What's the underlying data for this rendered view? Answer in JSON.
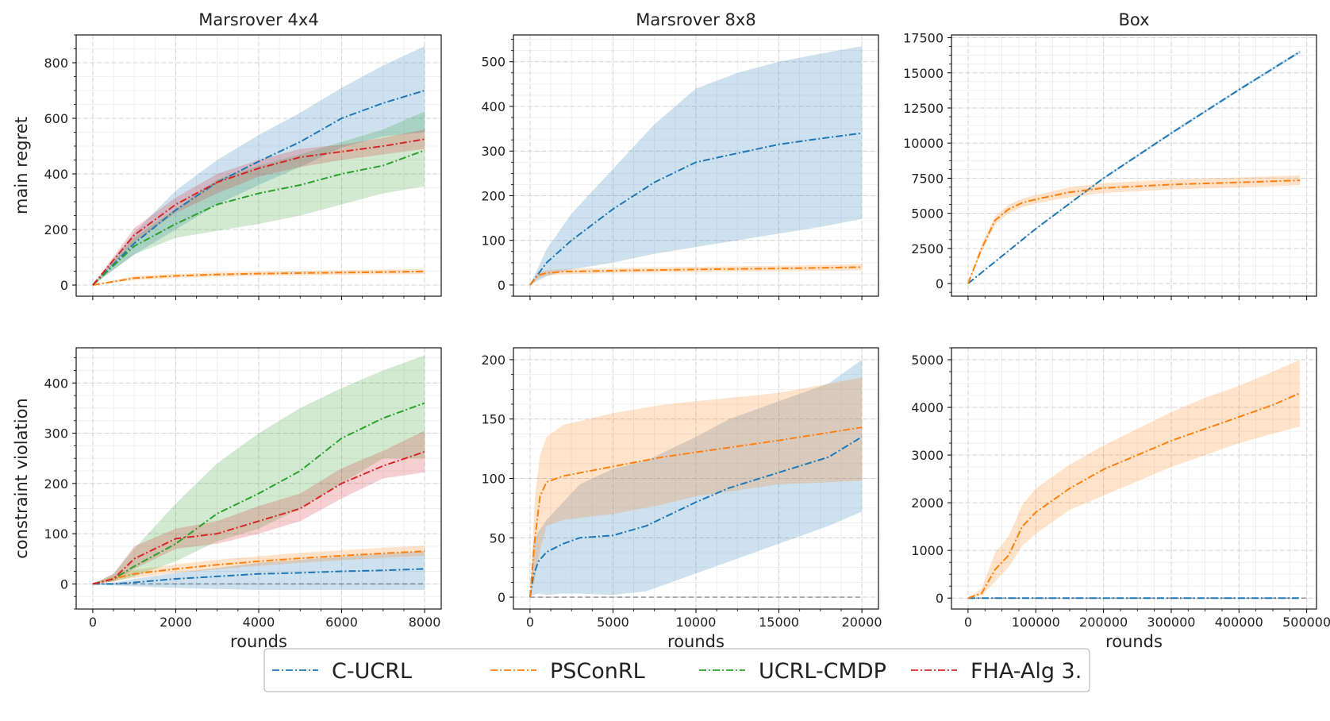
{
  "chart_data": {
    "type": "line",
    "layout": "2x3 grid of panels",
    "legend": {
      "placement": "bottom-center",
      "entries": [
        {
          "name": "C-UCRL",
          "color": "#1f77b4"
        },
        {
          "name": "PSConRL",
          "color": "#ff7f0e"
        },
        {
          "name": "UCRL-CMDP",
          "color": "#2ca02c"
        },
        {
          "name": "FHA-Alg 3.",
          "color": "#d62728"
        }
      ]
    },
    "columns": [
      {
        "title": "Marsrover 4x4",
        "xlabel": "rounds",
        "xlim": [
          -400,
          8400
        ],
        "xticks": [
          0,
          2000,
          4000,
          6000,
          8000
        ],
        "xtick_labels": [
          "0",
          "2000",
          "4000",
          "6000",
          "8000"
        ]
      },
      {
        "title": "Marsrover 8x8",
        "xlabel": "rounds",
        "xlim": [
          -1000,
          21000
        ],
        "xticks": [
          0,
          5000,
          10000,
          15000,
          20000
        ],
        "xtick_labels": [
          "0",
          "5000",
          "10000",
          "15000",
          "20000"
        ]
      },
      {
        "title": "Box",
        "xlabel": "rounds",
        "xlim": [
          -24500,
          514500
        ],
        "xticks": [
          0,
          100000,
          200000,
          300000,
          400000,
          500000
        ],
        "xtick_labels": [
          "0",
          "100000",
          "200000",
          "300000",
          "400000",
          "500000"
        ]
      }
    ],
    "rows": [
      {
        "ylabel": "main regret"
      },
      {
        "ylabel": "constraint violation"
      }
    ],
    "panels": [
      {
        "row": 0,
        "col": 0,
        "ylim": [
          -40,
          900
        ],
        "yticks": [
          0,
          200,
          400,
          600,
          800
        ],
        "ytick_labels": [
          "0",
          "200",
          "400",
          "600",
          "800"
        ],
        "series": [
          {
            "name": "C-UCRL",
            "x": [
              0,
              1000,
              2000,
              3000,
              4000,
              5000,
              6000,
              7000,
              8000
            ],
            "mean": [
              0,
              150,
              270,
              370,
              445,
              515,
              600,
              655,
              700
            ],
            "lower": [
              0,
              110,
              200,
              290,
              360,
              425,
              495,
              535,
              550
            ],
            "upper": [
              0,
              190,
              340,
              450,
              540,
              620,
              710,
              790,
              860
            ]
          },
          {
            "name": "PSConRL",
            "x": [
              0,
              1000,
              2000,
              3000,
              4000,
              5000,
              6000,
              7000,
              8000
            ],
            "mean": [
              0,
              25,
              33,
              38,
              41,
              43,
              45,
              47,
              49
            ],
            "lower": [
              0,
              18,
              26,
              30,
              33,
              35,
              37,
              39,
              40
            ],
            "upper": [
              0,
              32,
              40,
              46,
              49,
              51,
              53,
              56,
              58
            ]
          },
          {
            "name": "UCRL-CMDP",
            "x": [
              0,
              1000,
              2000,
              3000,
              4000,
              5000,
              6000,
              7000,
              8000
            ],
            "mean": [
              0,
              140,
              220,
              290,
              330,
              360,
              400,
              430,
              485
            ],
            "lower": [
              0,
              110,
              170,
              195,
              220,
              250,
              290,
              330,
              355
            ],
            "upper": [
              0,
              170,
              275,
              380,
              430,
              470,
              515,
              560,
              625
            ]
          },
          {
            "name": "FHA-Alg 3.",
            "x": [
              0,
              1000,
              2000,
              3000,
              4000,
              5000,
              6000,
              7000,
              8000
            ],
            "mean": [
              0,
              180,
              290,
              370,
              420,
              460,
              480,
              500,
              525
            ],
            "lower": [
              0,
              155,
              260,
              330,
              390,
              425,
              450,
              470,
              490
            ],
            "upper": [
              0,
              205,
              315,
              400,
              450,
              490,
              505,
              530,
              560
            ]
          }
        ]
      },
      {
        "row": 0,
        "col": 1,
        "ylim": [
          -25,
          560
        ],
        "yticks": [
          0,
          100,
          200,
          300,
          400,
          500
        ],
        "ytick_labels": [
          "0",
          "100",
          "200",
          "300",
          "400",
          "500"
        ],
        "series": [
          {
            "name": "C-UCRL",
            "x": [
              0,
              1000,
              2500,
              5000,
              7500,
              10000,
              12500,
              15000,
              17500,
              20000
            ],
            "mean": [
              0,
              50,
              100,
              170,
              230,
              275,
              295,
              315,
              328,
              340
            ],
            "lower": [
              0,
              20,
              35,
              50,
              70,
              85,
              100,
              115,
              130,
              148
            ],
            "upper": [
              0,
              80,
              160,
              260,
              360,
              440,
              475,
              500,
              518,
              535
            ]
          },
          {
            "name": "PSConRL",
            "x": [
              0,
              500,
              1000,
              2000,
              5000,
              10000,
              15000,
              20000
            ],
            "mean": [
              0,
              22,
              27,
              30,
              32,
              35,
              37,
              40
            ],
            "lower": [
              0,
              15,
              21,
              24,
              27,
              29,
              31,
              33
            ],
            "upper": [
              0,
              29,
              33,
              36,
              38,
              41,
              43,
              47
            ]
          }
        ]
      },
      {
        "row": 0,
        "col": 2,
        "ylim": [
          -900,
          17700
        ],
        "yticks": [
          0,
          2500,
          5000,
          7500,
          10000,
          12500,
          15000,
          17500
        ],
        "ytick_labels": [
          "0",
          "2500",
          "5000",
          "7500",
          "10000",
          "12500",
          "15000",
          "17500"
        ],
        "series": [
          {
            "name": "C-UCRL",
            "x": [
              0,
              100000,
              200000,
              300000,
              400000,
              490000
            ],
            "mean": [
              0,
              3900,
              7500,
              10700,
              13800,
              16500
            ],
            "lower": [
              0,
              3850,
              7420,
              10600,
              13700,
              16380
            ],
            "upper": [
              0,
              3950,
              7580,
              10800,
              13900,
              16620
            ]
          },
          {
            "name": "PSConRL",
            "x": [
              0,
              20000,
              40000,
              60000,
              80000,
              100000,
              150000,
              200000,
              300000,
              400000,
              490000
            ],
            "mean": [
              0,
              2500,
              4500,
              5300,
              5750,
              6000,
              6500,
              6800,
              7050,
              7200,
              7350
            ],
            "lower": [
              0,
              2200,
              4200,
              5000,
              5450,
              5700,
              6150,
              6450,
              6700,
              6850,
              7000
            ],
            "upper": [
              0,
              2800,
              4800,
              5600,
              6050,
              6300,
              6850,
              7150,
              7400,
              7550,
              7700
            ]
          }
        ]
      },
      {
        "row": 1,
        "col": 0,
        "ylim": [
          -50,
          470
        ],
        "yticks": [
          0,
          100,
          200,
          300,
          400
        ],
        "ytick_labels": [
          "0",
          "100",
          "200",
          "300",
          "400"
        ],
        "reference_line": 0,
        "series": [
          {
            "name": "C-UCRL",
            "x": [
              0,
              500,
              1000,
              2000,
              3000,
              4000,
              5000,
              6000,
              7000,
              8000
            ],
            "mean": [
              0,
              0,
              3,
              10,
              15,
              20,
              22,
              25,
              27,
              30
            ],
            "lower": [
              0,
              -3,
              -5,
              -8,
              -10,
              -12,
              -12,
              -12,
              -12,
              -12
            ],
            "upper": [
              0,
              3,
              10,
              22,
              32,
              42,
              48,
              54,
              60,
              65
            ]
          },
          {
            "name": "PSConRL",
            "x": [
              0,
              500,
              1000,
              2000,
              3000,
              4000,
              5000,
              6000,
              7000,
              8000
            ],
            "mean": [
              0,
              10,
              20,
              30,
              38,
              45,
              51,
              56,
              61,
              65
            ],
            "lower": [
              0,
              5,
              12,
              22,
              29,
              36,
              42,
              47,
              52,
              56
            ],
            "upper": [
              0,
              15,
              28,
              39,
              48,
              55,
              62,
              67,
              72,
              76
            ]
          },
          {
            "name": "UCRL-CMDP",
            "x": [
              0,
              500,
              1000,
              2000,
              3000,
              4000,
              5000,
              6000,
              7000,
              8000
            ],
            "mean": [
              0,
              10,
              35,
              80,
              140,
              180,
              225,
              290,
              330,
              360
            ],
            "lower": [
              0,
              5,
              15,
              45,
              85,
              110,
              150,
              200,
              250,
              250
            ],
            "upper": [
              0,
              20,
              70,
              160,
              240,
              300,
              350,
              390,
              425,
              455
            ]
          },
          {
            "name": "FHA-Alg 3.",
            "x": [
              0,
              500,
              1000,
              2000,
              3000,
              4000,
              5000,
              6000,
              7000,
              8000
            ],
            "mean": [
              0,
              10,
              50,
              90,
              100,
              125,
              150,
              200,
              235,
              263
            ],
            "lower": [
              0,
              5,
              30,
              70,
              80,
              100,
              125,
              170,
              210,
              222
            ],
            "upper": [
              0,
              20,
              75,
              110,
              125,
              155,
              180,
              230,
              265,
              305
            ]
          }
        ]
      },
      {
        "row": 1,
        "col": 1,
        "ylim": [
          -10,
          210
        ],
        "yticks": [
          0,
          50,
          100,
          150,
          200
        ],
        "ytick_labels": [
          "0",
          "50",
          "100",
          "150",
          "200"
        ],
        "reference_line": 0,
        "series": [
          {
            "name": "C-UCRL",
            "x": [
              0,
              200,
              500,
              1000,
              2000,
              3000,
              5000,
              7000,
              10000,
              12000,
              15000,
              18000,
              20000
            ],
            "mean": [
              0,
              18,
              30,
              38,
              45,
              50,
              52,
              60,
              80,
              92,
              105,
              118,
              135
            ],
            "lower": [
              0,
              2,
              3,
              2,
              3,
              3,
              2,
              5,
              20,
              30,
              45,
              60,
              72
            ],
            "upper": [
              0,
              45,
              55,
              65,
              80,
              95,
              108,
              115,
              135,
              150,
              165,
              180,
              200
            ]
          },
          {
            "name": "PSConRL",
            "x": [
              0,
              300,
              600,
              1000,
              2000,
              5000,
              8000,
              10000,
              15000,
              20000
            ],
            "mean": [
              0,
              50,
              85,
              97,
              102,
              110,
              118,
              122,
              132,
              143
            ],
            "lower": [
              0,
              15,
              40,
              60,
              65,
              70,
              78,
              85,
              95,
              98
            ],
            "upper": [
              0,
              85,
              120,
              135,
              145,
              155,
              162,
              165,
              172,
              185
            ]
          }
        ]
      },
      {
        "row": 1,
        "col": 2,
        "ylim": [
          -230,
          5250
        ],
        "yticks": [
          0,
          1000,
          2000,
          3000,
          4000,
          5000
        ],
        "ytick_labels": [
          "0",
          "1000",
          "2000",
          "3000",
          "4000",
          "5000"
        ],
        "reference_line": 0,
        "series": [
          {
            "name": "C-UCRL",
            "x": [
              0,
              100000,
              200000,
              300000,
              400000,
              490000
            ],
            "mean": [
              0,
              0,
              0,
              0,
              0,
              0
            ],
            "lower": [
              0,
              0,
              0,
              0,
              0,
              0
            ],
            "upper": [
              0,
              0,
              0,
              0,
              0,
              0
            ]
          },
          {
            "name": "PSConRL",
            "x": [
              0,
              20000,
              40000,
              60000,
              80000,
              100000,
              150000,
              200000,
              250000,
              300000,
              350000,
              400000,
              450000,
              490000
            ],
            "mean": [
              0,
              100,
              600,
              900,
              1500,
              1800,
              2300,
              2700,
              3000,
              3300,
              3550,
              3800,
              4050,
              4300
            ],
            "lower": [
              0,
              50,
              350,
              650,
              1100,
              1350,
              1850,
              2150,
              2450,
              2750,
              3000,
              3250,
              3450,
              3600
            ],
            "upper": [
              0,
              200,
              950,
              1300,
              1950,
              2300,
              2800,
              3200,
              3550,
              3900,
              4200,
              4450,
              4750,
              5000
            ]
          }
        ]
      }
    ]
  }
}
